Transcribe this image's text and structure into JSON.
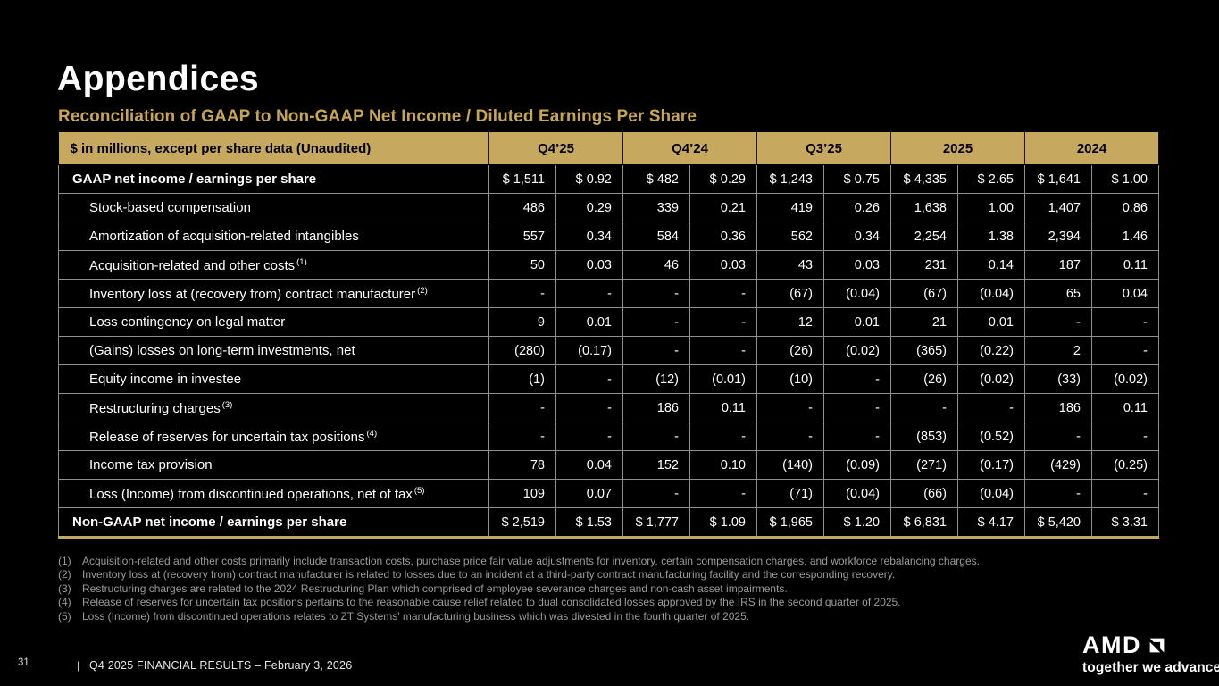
{
  "slide": {
    "title": "Appendices",
    "subtitle": "Reconciliation of GAAP to Non-GAAP Net Income / Diluted Earnings Per Share"
  },
  "table": {
    "header": {
      "label": "$ in millions, except per share data (Unaudited)",
      "columns": [
        "Q4’25",
        "Q4’24",
        "Q3’25",
        "2025",
        "2024"
      ]
    },
    "rows": [
      {
        "label": "GAAP net income / earnings per share",
        "ref": "",
        "bold": true,
        "values": [
          "$ 1,511",
          "$ 0.92",
          "$ 482",
          "$ 0.29",
          "$ 1,243",
          "$ 0.75",
          "$ 4,335",
          "$ 2.65",
          "$ 1,641",
          "$ 1.00"
        ]
      },
      {
        "label": "Stock-based compensation",
        "ref": "",
        "bold": false,
        "values": [
          "486",
          "0.29",
          "339",
          "0.21",
          "419",
          "0.26",
          "1,638",
          "1.00",
          "1,407",
          "0.86"
        ]
      },
      {
        "label": "Amortization of acquisition-related intangibles",
        "ref": "",
        "bold": false,
        "values": [
          "557",
          "0.34",
          "584",
          "0.36",
          "562",
          "0.34",
          "2,254",
          "1.38",
          "2,394",
          "1.46"
        ]
      },
      {
        "label": "Acquisition-related and other costs",
        "ref": "(1)",
        "bold": false,
        "values": [
          "50",
          "0.03",
          "46",
          "0.03",
          "43",
          "0.03",
          "231",
          "0.14",
          "187",
          "0.11"
        ]
      },
      {
        "label": "Inventory loss at (recovery from) contract manufacturer",
        "ref": "(2)",
        "bold": false,
        "values": [
          "-",
          "-",
          "-",
          "-",
          "(67)",
          "(0.04)",
          "(67)",
          "(0.04)",
          "65",
          "0.04"
        ]
      },
      {
        "label": "Loss contingency on legal matter",
        "ref": "",
        "bold": false,
        "values": [
          "9",
          "0.01",
          "-",
          "-",
          "12",
          "0.01",
          "21",
          "0.01",
          "-",
          "-"
        ]
      },
      {
        "label": "(Gains) losses on long-term investments, net",
        "ref": "",
        "bold": false,
        "values": [
          "(280)",
          "(0.17)",
          "-",
          "-",
          "(26)",
          "(0.02)",
          "(365)",
          "(0.22)",
          "2",
          "-"
        ]
      },
      {
        "label": "Equity income in investee",
        "ref": "",
        "bold": false,
        "values": [
          "(1)",
          "-",
          "(12)",
          "(0.01)",
          "(10)",
          "-",
          "(26)",
          "(0.02)",
          "(33)",
          "(0.02)"
        ]
      },
      {
        "label": "Restructuring charges",
        "ref": "(3)",
        "bold": false,
        "values": [
          "-",
          "-",
          "186",
          "0.11",
          "-",
          "-",
          "-",
          "-",
          "186",
          "0.11"
        ]
      },
      {
        "label": "Release of reserves for uncertain tax positions",
        "ref": "(4)",
        "bold": false,
        "values": [
          "-",
          "-",
          "-",
          "-",
          "-",
          "-",
          "(853)",
          "(0.52)",
          "-",
          "-"
        ]
      },
      {
        "label": "Income tax provision",
        "ref": "",
        "bold": false,
        "values": [
          "78",
          "0.04",
          "152",
          "0.10",
          "(140)",
          "(0.09)",
          "(271)",
          "(0.17)",
          "(429)",
          "(0.25)"
        ]
      },
      {
        "label": "Loss (Income) from discontinued operations, net of tax",
        "ref": "(5)",
        "bold": false,
        "values": [
          "109",
          "0.07",
          "-",
          "-",
          "(71)",
          "(0.04)",
          "(66)",
          "(0.04)",
          "-",
          "-"
        ]
      },
      {
        "label": "Non-GAAP net income / earnings per share",
        "ref": "",
        "bold": true,
        "values": [
          "$ 2,519",
          "$ 1.53",
          "$ 1,777",
          "$ 1.09",
          "$ 1,965",
          "$ 1.20",
          "$ 6,831",
          "$ 4.17",
          "$ 5,420",
          "$ 3.31"
        ]
      }
    ]
  },
  "footnotes": [
    {
      "num": "(1)",
      "text": "Acquisition-related and other costs primarily include transaction costs, purchase price fair value adjustments for inventory, certain compensation charges, and workforce rebalancing charges."
    },
    {
      "num": "(2)",
      "text": "Inventory loss at (recovery from) contract manufacturer is related to losses due to an incident at a third-party contract manufacturing facility and the corresponding recovery."
    },
    {
      "num": "(3)",
      "text": "Restructuring charges are related to the 2024 Restructuring Plan which comprised of employee severance charges and non-cash asset impairments."
    },
    {
      "num": "(4)",
      "text": "Release of reserves for uncertain tax positions pertains to the reasonable cause relief related to dual consolidated losses approved by the IRS in the second quarter of 2025."
    },
    {
      "num": "(5)",
      "text": "Loss (Income) from discontinued operations relates to ZT Systems' manufacturing business which was divested in the fourth quarter of 2025."
    }
  ],
  "footer": {
    "page": "31",
    "divider": "|",
    "text": "Q4 2025 FINANCIAL RESULTS – February 3, 2026"
  },
  "brand": {
    "logo": "AMD",
    "tagline": "together we advance_"
  },
  "colors": {
    "background": "#000000",
    "header_gold": "#C6A95F",
    "accent_gold": "#C8A551",
    "body_text": "#FFFFFF",
    "footnote_gray": "#9B9B9B"
  }
}
